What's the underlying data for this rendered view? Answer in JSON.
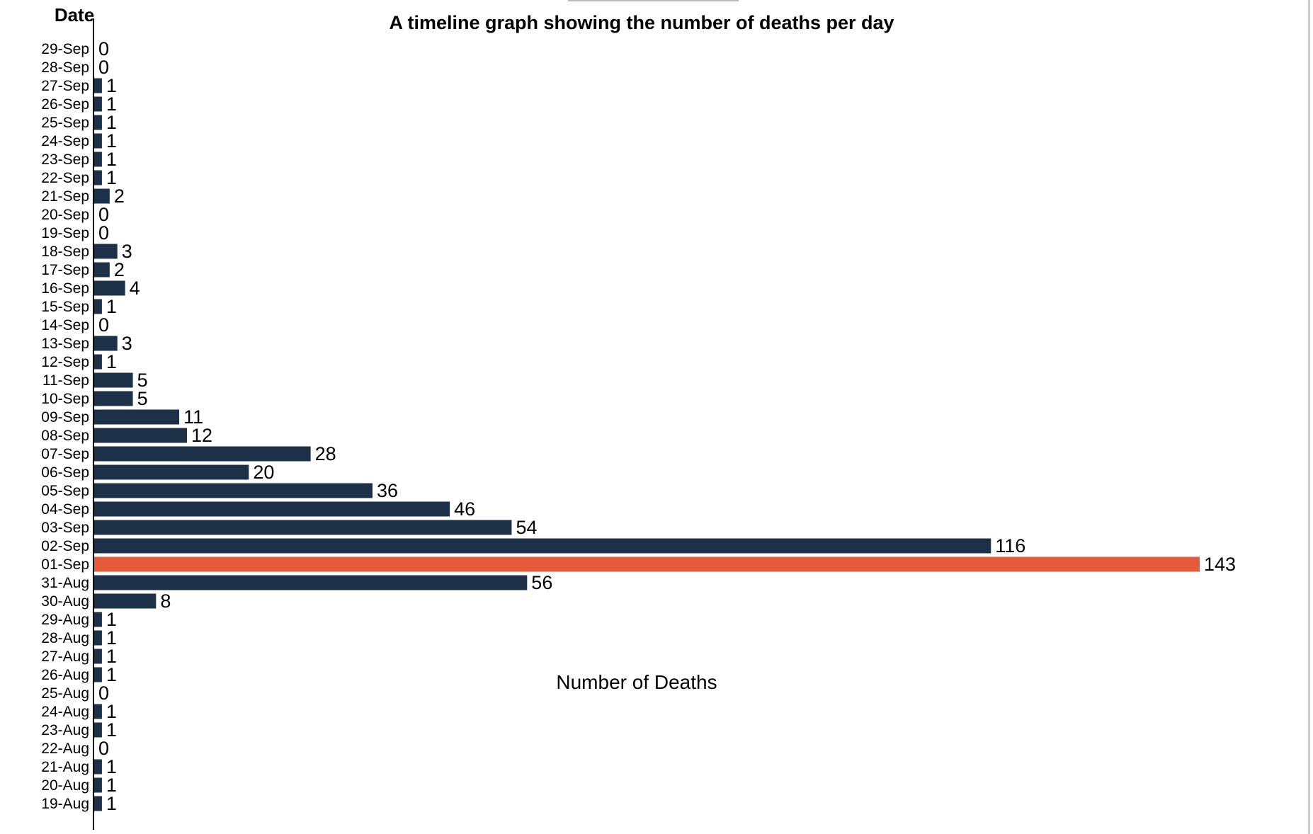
{
  "chart_data": {
    "type": "bar",
    "orientation": "horizontal",
    "title": "A timeline graph showing the number of deaths per day",
    "xlabel": "Number of Deaths",
    "ylabel": "Date",
    "categories": [
      "29-Sep",
      "28-Sep",
      "27-Sep",
      "26-Sep",
      "25-Sep",
      "24-Sep",
      "23-Sep",
      "22-Sep",
      "21-Sep",
      "20-Sep",
      "19-Sep",
      "18-Sep",
      "17-Sep",
      "16-Sep",
      "15-Sep",
      "14-Sep",
      "13-Sep",
      "12-Sep",
      "11-Sep",
      "10-Sep",
      "09-Sep",
      "08-Sep",
      "07-Sep",
      "06-Sep",
      "05-Sep",
      "04-Sep",
      "03-Sep",
      "02-Sep",
      "01-Sep",
      "31-Aug",
      "30-Aug",
      "29-Aug",
      "28-Aug",
      "27-Aug",
      "26-Aug",
      "25-Aug",
      "24-Aug",
      "23-Aug",
      "22-Aug",
      "21-Aug",
      "20-Aug",
      "19-Aug"
    ],
    "values": [
      0,
      0,
      1,
      1,
      1,
      1,
      1,
      1,
      2,
      0,
      0,
      3,
      2,
      4,
      1,
      0,
      3,
      1,
      5,
      5,
      11,
      12,
      28,
      20,
      36,
      46,
      54,
      116,
      143,
      56,
      8,
      1,
      1,
      1,
      1,
      0,
      1,
      1,
      0,
      1,
      1,
      1
    ],
    "xlim": [
      0,
      143
    ],
    "grid": false,
    "highlight_category": "01-Sep",
    "colors": {
      "bar": "#1c3048",
      "highlight": "#e55a3a"
    }
  }
}
